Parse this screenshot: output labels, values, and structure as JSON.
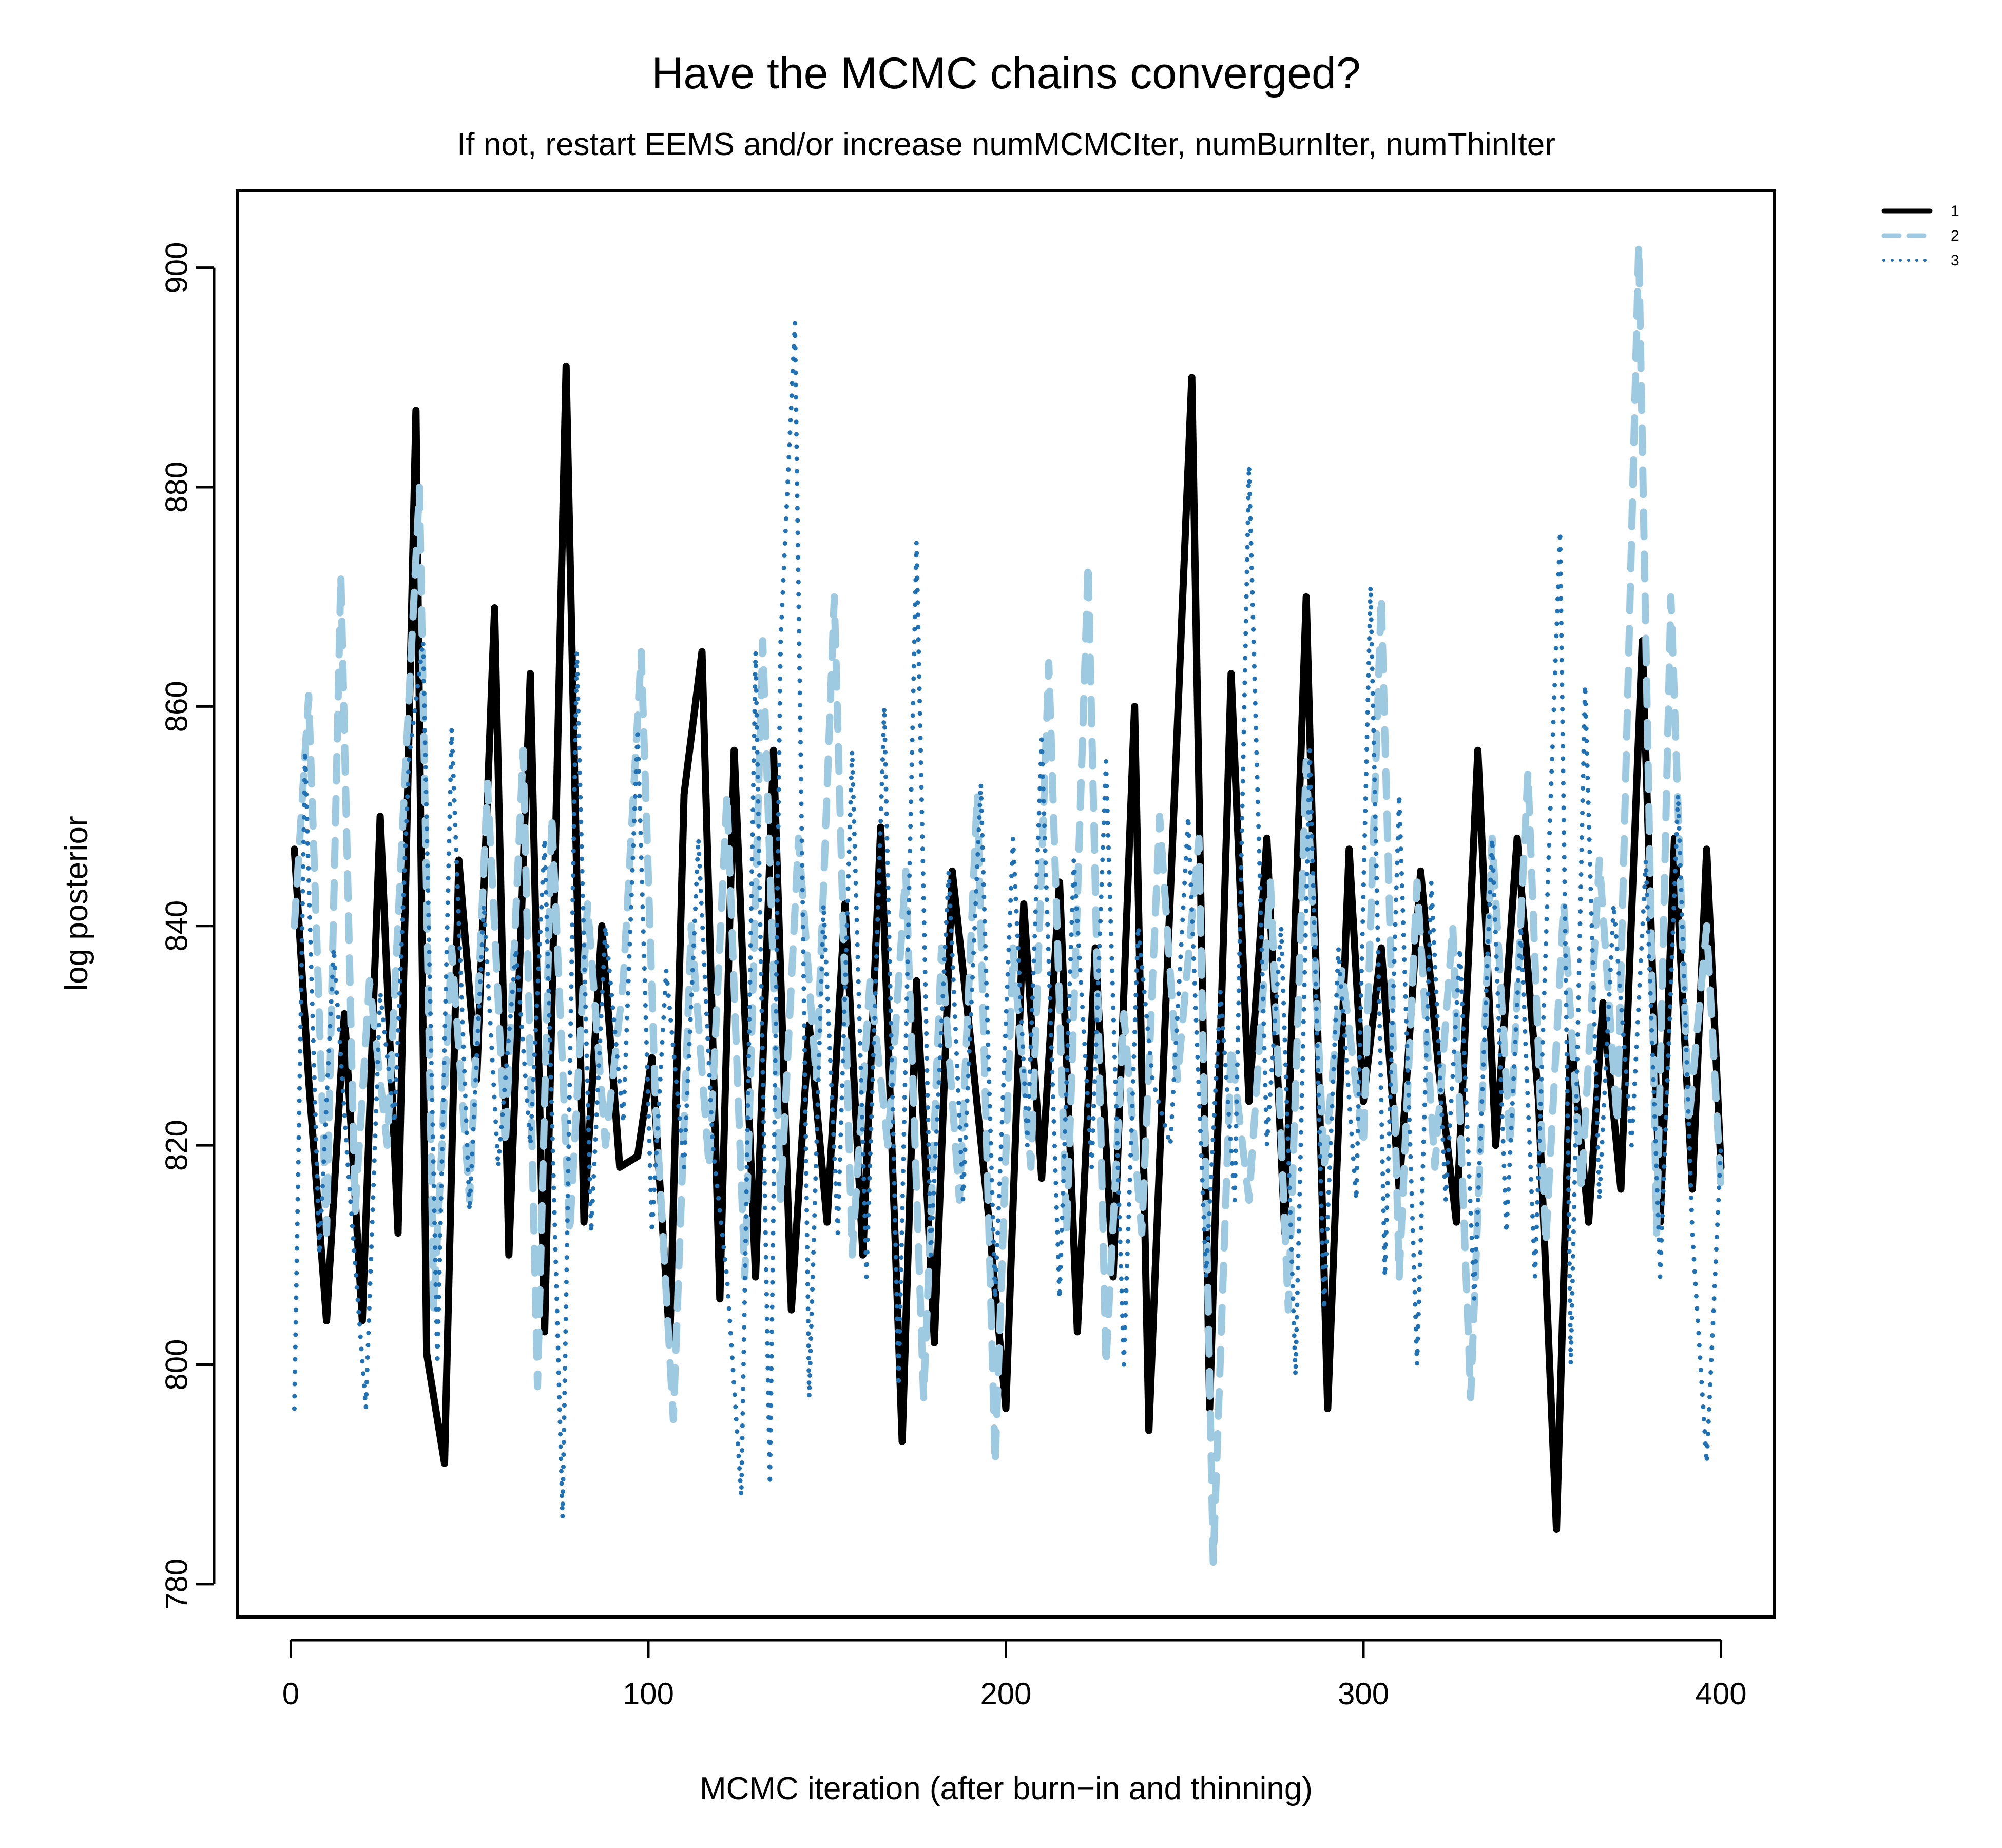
{
  "chart_data": {
    "type": "line",
    "title": "Have the MCMC chains converged?",
    "subtitle": "If not, restart EEMS and/or increase numMCMCIter, numBurnIter, numThinIter",
    "xlabel": "MCMC iteration  (after burn−in and thinning)",
    "ylabel": "log posterior",
    "xlim": [
      -15,
      415
    ],
    "ylim": [
      777,
      907
    ],
    "xticks": [
      0,
      100,
      200,
      300,
      400
    ],
    "yticks": [
      780,
      800,
      820,
      840,
      860,
      880,
      900
    ],
    "grid": false,
    "legend_position": "top-right",
    "series": [
      {
        "name": "1",
        "color": "#000000",
        "style": "solid",
        "x": [
          1,
          5,
          10,
          15,
          20,
          25,
          30,
          35,
          38,
          43,
          47,
          52,
          57,
          61,
          67,
          71,
          77,
          82,
          87,
          92,
          97,
          101,
          106,
          110,
          115,
          120,
          124,
          130,
          135,
          140,
          145,
          150,
          155,
          160,
          165,
          171,
          175,
          180,
          185,
          190,
          195,
          200,
          205,
          210,
          215,
          220,
          225,
          230,
          236,
          240,
          245,
          252,
          257,
          263,
          268,
          273,
          278,
          284,
          290,
          296,
          300,
          305,
          310,
          316,
          321,
          326,
          332,
          337,
          343,
          349,
          354,
          358,
          363,
          367,
          372,
          378,
          383,
          387,
          392,
          396,
          400
        ],
        "y": [
          847,
          826,
          804,
          832,
          804,
          850,
          812,
          887,
          801,
          791,
          846,
          826,
          869,
          810,
          863,
          803,
          891,
          813,
          840,
          818,
          819,
          828,
          802,
          852,
          865,
          806,
          856,
          808,
          856,
          805,
          831,
          813,
          842,
          810,
          849,
          793,
          835,
          802,
          845,
          830,
          814,
          796,
          842,
          817,
          844,
          803,
          838,
          808,
          860,
          794,
          835,
          890,
          796,
          863,
          824,
          848,
          812,
          870,
          796,
          847,
          824,
          838,
          816,
          845,
          827,
          813,
          856,
          820,
          848,
          824,
          785,
          830,
          813,
          833,
          816,
          866,
          813,
          848,
          816,
          847,
          818
        ]
      },
      {
        "name": "2",
        "color": "#9ecae1",
        "style": "dashed",
        "x": [
          1,
          5,
          10,
          14,
          18,
          22,
          27,
          32,
          36,
          40,
          45,
          50,
          55,
          60,
          65,
          69,
          73,
          78,
          83,
          88,
          93,
          98,
          102,
          107,
          112,
          117,
          122,
          127,
          132,
          137,
          142,
          147,
          152,
          157,
          162,
          167,
          172,
          177,
          182,
          187,
          192,
          197,
          202,
          207,
          212,
          217,
          223,
          228,
          233,
          238,
          243,
          248,
          254,
          258,
          263,
          268,
          274,
          279,
          284,
          289,
          294,
          300,
          305,
          310,
          315,
          320,
          325,
          330,
          336,
          341,
          346,
          351,
          356,
          361,
          366,
          371,
          377,
          382,
          386,
          391,
          396,
          400
        ],
        "y": [
          840,
          861,
          812,
          872,
          814,
          835,
          820,
          854,
          880,
          805,
          838,
          815,
          853,
          820,
          856,
          798,
          850,
          812,
          842,
          820,
          835,
          865,
          824,
          795,
          840,
          818,
          852,
          808,
          866,
          815,
          848,
          826,
          870,
          810,
          835,
          820,
          845,
          797,
          838,
          815,
          852,
          791,
          838,
          818,
          864,
          812,
          873,
          800,
          832,
          812,
          850,
          826,
          848,
          782,
          829,
          815,
          844,
          805,
          855,
          818,
          836,
          820,
          870,
          808,
          844,
          818,
          840,
          797,
          848,
          820,
          854,
          811,
          842,
          816,
          846,
          822,
          902,
          812,
          870,
          822,
          840,
          816
        ]
      },
      {
        "name": "3",
        "color": "#2171b5",
        "style": "dotted",
        "x": [
          1,
          4,
          8,
          12,
          16,
          21,
          25,
          29,
          33,
          37,
          41,
          45,
          50,
          54,
          58,
          63,
          67,
          71,
          76,
          80,
          84,
          88,
          93,
          97,
          101,
          105,
          110,
          114,
          118,
          122,
          126,
          130,
          134,
          137,
          141,
          145,
          149,
          153,
          157,
          161,
          166,
          170,
          175,
          179,
          184,
          188,
          193,
          197,
          202,
          206,
          210,
          215,
          219,
          224,
          228,
          233,
          237,
          241,
          246,
          251,
          256,
          260,
          264,
          268,
          273,
          277,
          281,
          285,
          289,
          293,
          298,
          302,
          306,
          310,
          315,
          319,
          323,
          327,
          331,
          336,
          340,
          344,
          348,
          352,
          355,
          358,
          362,
          366,
          370,
          375,
          379,
          383,
          388,
          392,
          396,
          400
        ],
        "y": [
          796,
          856,
          810,
          838,
          818,
          796,
          834,
          822,
          855,
          866,
          800,
          858,
          814,
          842,
          818,
          838,
          820,
          848,
          786,
          865,
          812,
          840,
          822,
          858,
          812,
          836,
          818,
          848,
          820,
          808,
          788,
          865,
          789,
          866,
          895,
          797,
          842,
          812,
          856,
          808,
          860,
          798,
          875,
          810,
          845,
          815,
          853,
          806,
          848,
          820,
          857,
          806,
          846,
          818,
          855,
          800,
          840,
          826,
          820,
          850,
          808,
          834,
          815,
          882,
          820,
          840,
          799,
          856,
          805,
          838,
          815,
          871,
          808,
          852,
          800,
          844,
          815,
          838,
          806,
          848,
          812,
          840,
          808,
          848,
          876,
          800,
          862,
          815,
          842,
          820,
          846,
          808,
          852,
          812,
          791,
          820
        ]
      }
    ]
  }
}
